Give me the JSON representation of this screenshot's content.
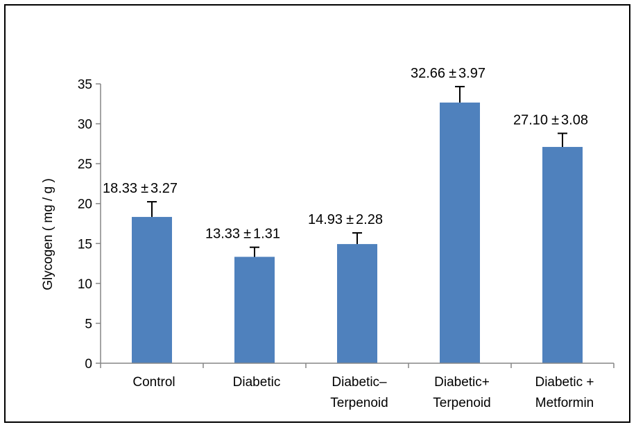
{
  "chart_data": {
    "type": "bar",
    "title": "",
    "xlabel": "",
    "ylabel": "Glycogen ( mg / g )",
    "ylim": [
      0,
      35
    ],
    "yticks": [
      0,
      5,
      10,
      15,
      20,
      25,
      30,
      35
    ],
    "grid": false,
    "legend": "none",
    "bar_color": "#4f81bd",
    "categories": [
      [
        "Control"
      ],
      [
        "Diabetic"
      ],
      [
        "Diabetic–",
        "Terpenoid"
      ],
      [
        "Diabetic+",
        "Terpenoid"
      ],
      [
        "Diabetic +",
        "Metformin"
      ]
    ],
    "values": [
      18.33,
      13.33,
      14.93,
      32.66,
      27.1
    ],
    "errors_drawn": [
      1.9,
      1.2,
      1.4,
      2.0,
      1.7
    ],
    "data_labels": [
      {
        "mean": "18.33",
        "sd": "3.27"
      },
      {
        "mean": "13.33",
        "sd": "1.31"
      },
      {
        "mean": "14.93",
        "sd": "2.28"
      },
      {
        "mean": "32.66",
        "sd": "3.97"
      },
      {
        "mean": "27.10",
        "sd": "3.08"
      }
    ]
  }
}
